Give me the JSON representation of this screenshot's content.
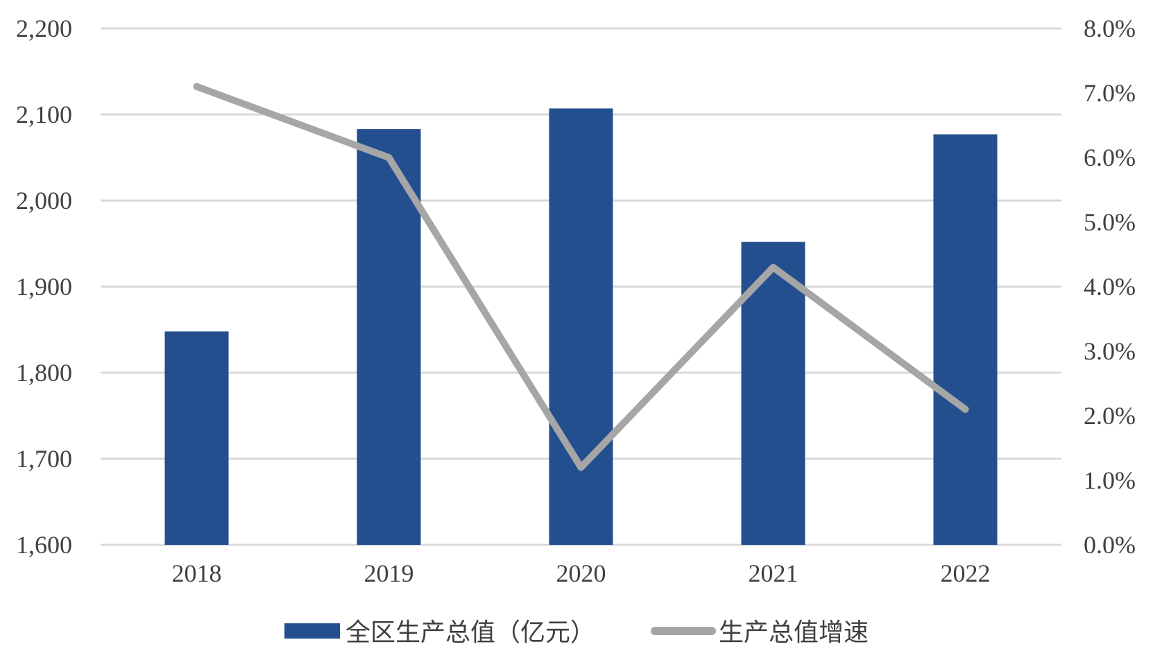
{
  "chart_data": {
    "type": "bar",
    "categories": [
      "2018",
      "2019",
      "2020",
      "2021",
      "2022"
    ],
    "series": [
      {
        "name": "全区生产总值（亿元）",
        "type": "bar",
        "axis": "left",
        "color": "#234F8E",
        "values": [
          1848,
          2083,
          2107,
          1952,
          2077
        ]
      },
      {
        "name": "生产总值增速",
        "type": "line",
        "axis": "right",
        "color": "#A6A6A6",
        "values": [
          7.1,
          6.0,
          1.2,
          4.3,
          2.1
        ]
      }
    ],
    "y_left": {
      "min": 1600,
      "max": 2200,
      "step": 100,
      "tick_labels": [
        "1,600",
        "1,700",
        "1,800",
        "1,900",
        "2,000",
        "2,100",
        "2,200"
      ]
    },
    "y_right": {
      "min": 0,
      "max": 8,
      "step": 1,
      "tick_labels": [
        "0.0%",
        "1.0%",
        "2.0%",
        "3.0%",
        "4.0%",
        "5.0%",
        "6.0%",
        "7.0%",
        "8.0%"
      ]
    },
    "grid": true,
    "legend_position": "bottom",
    "title": "",
    "xlabel": "",
    "ylabel": ""
  }
}
